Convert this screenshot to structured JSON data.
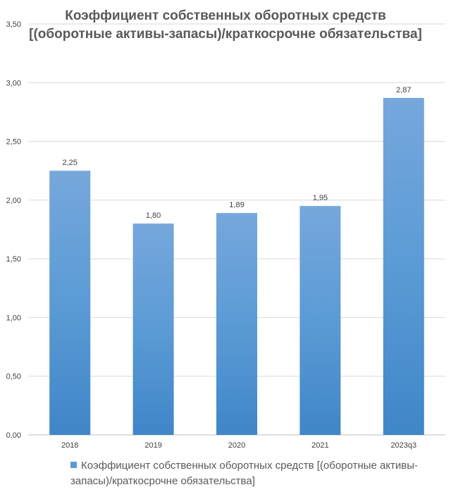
{
  "chart_data": {
    "type": "bar",
    "title": "Коэффициент собственных оборотных средств [(оборотные активы-запасы)/краткосрочне обязательства]",
    "categories": [
      "2018",
      "2019",
      "2020",
      "2021",
      "2023q3"
    ],
    "series": [
      {
        "name": "Коэффициент собственных оборотных средств [(оборотные активы-запасы)/краткосрочне обязательства]",
        "values": [
          2.25,
          1.8,
          1.89,
          1.95,
          2.87
        ],
        "value_labels": [
          "2,25",
          "1,80",
          "1,89",
          "1,95",
          "2,87"
        ]
      }
    ],
    "ylim": [
      0,
      3.5
    ],
    "yticks": [
      "0,00",
      "0,50",
      "1,00",
      "1,50",
      "2,00",
      "2,50",
      "3,00",
      "3,50"
    ],
    "ytick_values": [
      0,
      0.5,
      1.0,
      1.5,
      2.0,
      2.5,
      3.0,
      3.5
    ],
    "xlabel": "",
    "ylabel": "",
    "grid": true,
    "legend_position": "bottom",
    "bar_color": "#5b9bd5",
    "bar_color_top": "#76a7dc",
    "bar_color_bottom": "#3f86c8"
  }
}
